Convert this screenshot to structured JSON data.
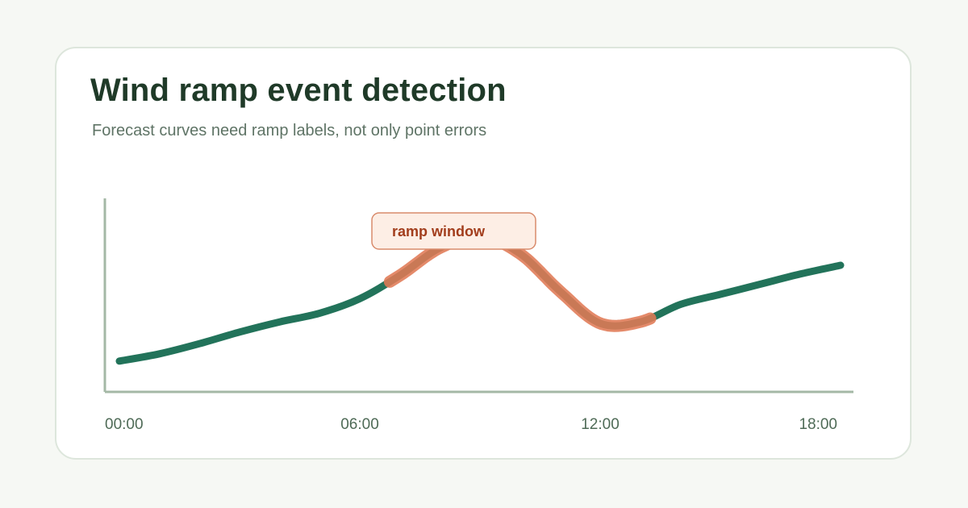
{
  "title": "Wind ramp event detection",
  "subtitle": "Forecast curves need ramp labels, not only point errors",
  "chart_data": {
    "type": "line",
    "title": "Wind ramp event detection",
    "subtitle": "Forecast curves need ramp labels, not only point errors",
    "xlabel": "",
    "ylabel": "",
    "x_ticks": [
      "00:00",
      "06:00",
      "12:00",
      "18:00"
    ],
    "x": [
      "00:00",
      "01:00",
      "02:00",
      "03:00",
      "04:00",
      "05:00",
      "06:00",
      "07:00",
      "08:00",
      "09:00",
      "10:00",
      "11:00",
      "12:00",
      "13:00",
      "14:00",
      "15:00",
      "16:00",
      "17:00",
      "18:00"
    ],
    "series": [
      {
        "values": [
          0.19,
          0.24,
          0.31,
          0.39,
          0.46,
          0.52,
          0.62,
          0.78,
          0.97,
          1.05,
          0.93,
          0.67,
          0.45,
          0.46,
          0.58,
          0.65,
          0.72,
          0.79,
          0.85
        ],
        "color": "#22735a"
      }
    ],
    "annotation": {
      "label": "ramp window",
      "x_start": "06:45",
      "x_end": "13:15",
      "color": "#e07a55"
    },
    "grid": false,
    "legend": "none"
  }
}
